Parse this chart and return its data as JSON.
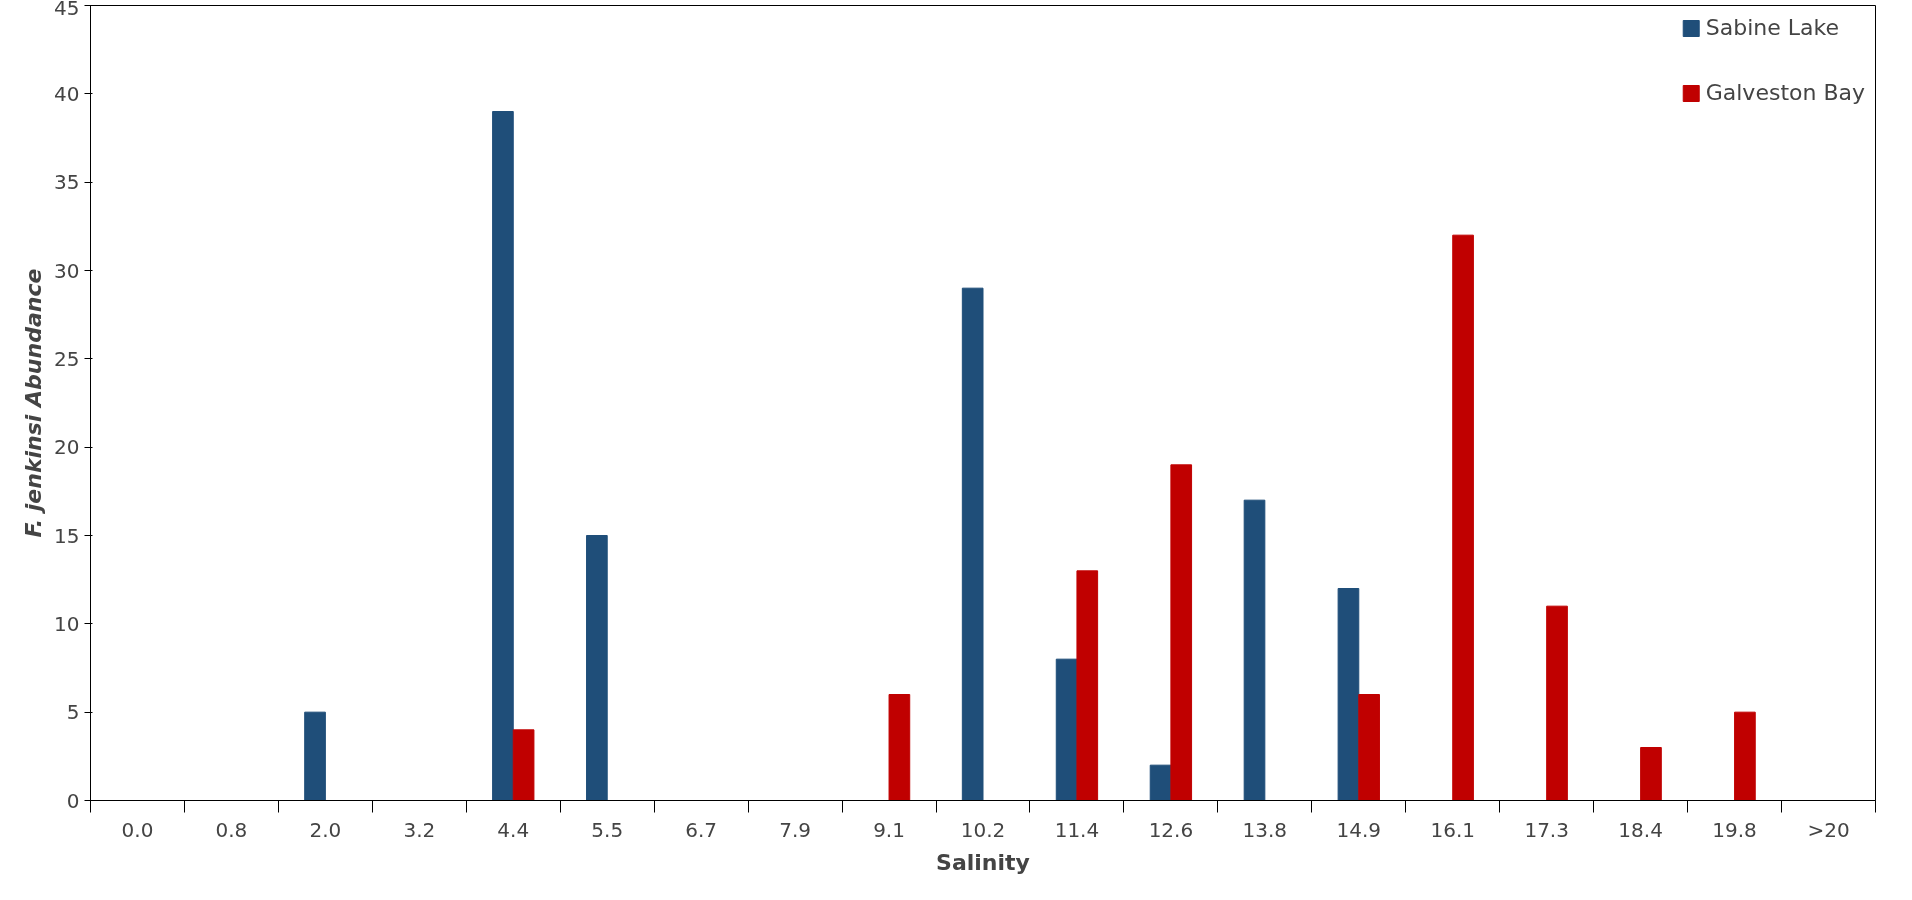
{
  "chart_data": {
    "type": "bar",
    "xlabel": "Salinity",
    "ylabel": "F. jenkinsi Abundance",
    "categories": [
      "0.0",
      "0.8",
      "2.0",
      "3.2",
      "4.4",
      "5.5",
      "6.7",
      "7.9",
      "9.1",
      "10.2",
      "11.4",
      "12.6",
      "13.8",
      "14.9",
      "16.1",
      "17.3",
      "18.4",
      "19.8",
      ">20"
    ],
    "series": [
      {
        "name": "Sabine Lake",
        "color": "#1f4e79",
        "values": [
          0,
          0,
          5,
          0,
          39,
          15,
          0,
          0,
          0,
          29,
          8,
          2,
          17,
          12,
          0,
          0,
          0,
          0,
          0
        ]
      },
      {
        "name": "Galveston Bay",
        "color": "#c00000",
        "values": [
          0,
          0,
          0,
          0,
          4,
          0,
          0,
          0,
          6,
          0,
          13,
          19,
          0,
          6,
          32,
          11,
          3,
          5,
          0
        ]
      }
    ],
    "ylim": [
      0,
      45
    ],
    "yticks": [
      0,
      5,
      10,
      15,
      20,
      25,
      30,
      35,
      40,
      45
    ],
    "grid": false,
    "legend": "top right"
  }
}
